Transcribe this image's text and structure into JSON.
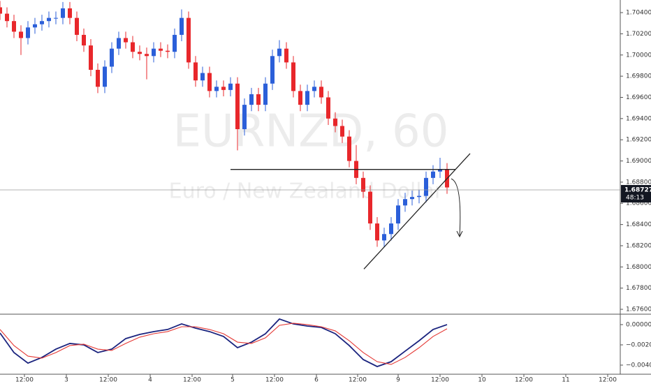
{
  "chart_data": [
    {
      "type": "candlestick",
      "watermark_title": "EURNZD, 60",
      "watermark_subtitle": "Euro / New Zealand Dollar",
      "up_color": "#2b5fd9",
      "down_color": "#e8272b",
      "xlim": [
        0,
        177.6
      ],
      "ylim": [
        1.67554,
        1.70519
      ],
      "yticks": [
        {
          "value": 1.704,
          "label": "1.70400"
        },
        {
          "value": 1.702,
          "label": "1.70200"
        },
        {
          "value": 1.7,
          "label": "1.70000"
        },
        {
          "value": 1.698,
          "label": "1.69800"
        },
        {
          "value": 1.696,
          "label": "1.69600"
        },
        {
          "value": 1.694,
          "label": "1.69400"
        },
        {
          "value": 1.692,
          "label": "1.69200"
        },
        {
          "value": 1.69,
          "label": "1.69000"
        },
        {
          "value": 1.688,
          "label": "1.68800"
        },
        {
          "value": 1.686,
          "label": "1.68600"
        },
        {
          "value": 1.684,
          "label": "1.68400"
        },
        {
          "value": 1.682,
          "label": "1.68200"
        },
        {
          "value": 1.68,
          "label": "1.68000"
        },
        {
          "value": 1.678,
          "label": "1.67800"
        },
        {
          "value": 1.676,
          "label": "1.67600"
        }
      ],
      "x": [
        0,
        2,
        4,
        6,
        8,
        10,
        12,
        14,
        16,
        18,
        20,
        22,
        24,
        26,
        28,
        30,
        32,
        34,
        36,
        38,
        40,
        42,
        44,
        46,
        48,
        50,
        52,
        54,
        56,
        58,
        60,
        62,
        64,
        66,
        68,
        70,
        72,
        74,
        76,
        78,
        80,
        82,
        84,
        86,
        88,
        90,
        92,
        94,
        96,
        98,
        100,
        102,
        104,
        106,
        108,
        110,
        112,
        114,
        116,
        118,
        120,
        122,
        124,
        126,
        128
      ],
      "open": [
        1.7045,
        1.7039,
        1.7032,
        1.7022,
        1.7016,
        1.7026,
        1.7029,
        1.7032,
        1.7035,
        1.7035,
        1.7044,
        1.7035,
        1.7019,
        1.7009,
        1.6986,
        1.697,
        1.6989,
        1.7006,
        1.7016,
        1.7012,
        1.7003,
        1.7001,
        1.6999,
        1.7006,
        1.7004,
        1.7003,
        1.7019,
        1.7035,
        1.6993,
        1.6976,
        1.6983,
        1.6966,
        1.697,
        1.6967,
        1.6973,
        1.693,
        1.6953,
        1.6963,
        1.6953,
        1.6973,
        1.6999,
        1.7006,
        1.6993,
        1.6966,
        1.6953,
        1.6966,
        1.697,
        1.696,
        1.694,
        1.6933,
        1.6923,
        1.69,
        1.6884,
        1.6871,
        1.6841,
        1.6825,
        1.6831,
        1.6841,
        1.6858,
        1.6864,
        1.6866,
        1.6867,
        1.6884,
        1.689,
        1.6892
      ],
      "high": [
        1.7051,
        1.7045,
        1.7038,
        1.7028,
        1.7032,
        1.7035,
        1.7038,
        1.7041,
        1.7041,
        1.705,
        1.705,
        1.7041,
        1.7025,
        1.7015,
        1.6992,
        1.6995,
        1.7012,
        1.7022,
        1.7022,
        1.7018,
        1.7009,
        1.7007,
        1.7012,
        1.7012,
        1.701,
        1.7025,
        1.7043,
        1.7041,
        1.6999,
        1.6989,
        1.6989,
        1.6976,
        1.6976,
        1.6979,
        1.6979,
        1.6959,
        1.6969,
        1.6969,
        1.6979,
        1.7005,
        1.7014,
        1.7012,
        1.6999,
        1.6972,
        1.6972,
        1.6976,
        1.6976,
        1.6966,
        1.6946,
        1.6939,
        1.6929,
        1.6915,
        1.689,
        1.6877,
        1.6847,
        1.6837,
        1.6847,
        1.6864,
        1.687,
        1.6872,
        1.6873,
        1.689,
        1.6896,
        1.6903,
        1.6898
      ],
      "low": [
        1.7033,
        1.7026,
        1.7016,
        1.7,
        1.701,
        1.702,
        1.7023,
        1.7026,
        1.7029,
        1.7029,
        1.7029,
        1.7013,
        1.7003,
        1.698,
        1.6964,
        1.6964,
        1.6983,
        1.7,
        1.7006,
        1.6997,
        1.6995,
        1.6977,
        1.6993,
        1.6998,
        1.6997,
        1.6997,
        1.7013,
        1.6987,
        1.697,
        1.697,
        1.696,
        1.696,
        1.6961,
        1.6961,
        1.691,
        1.6924,
        1.6947,
        1.6947,
        1.6947,
        1.6967,
        1.6993,
        1.6987,
        1.696,
        1.6947,
        1.6947,
        1.696,
        1.6954,
        1.6934,
        1.6927,
        1.6917,
        1.6894,
        1.6878,
        1.6865,
        1.6835,
        1.6819,
        1.6819,
        1.6825,
        1.6835,
        1.6852,
        1.6858,
        1.686,
        1.6861,
        1.6878,
        1.6884,
        1.6869
      ],
      "close": [
        1.7039,
        1.7032,
        1.7022,
        1.7016,
        1.7026,
        1.7029,
        1.7032,
        1.7035,
        1.7035,
        1.7044,
        1.7035,
        1.7019,
        1.7009,
        1.6986,
        1.697,
        1.6989,
        1.7006,
        1.7016,
        1.7012,
        1.7003,
        1.7001,
        1.6999,
        1.7006,
        1.7004,
        1.7003,
        1.7019,
        1.7035,
        1.6993,
        1.6976,
        1.6983,
        1.6966,
        1.697,
        1.6967,
        1.6973,
        1.693,
        1.6953,
        1.6963,
        1.6953,
        1.6973,
        1.6999,
        1.7006,
        1.6993,
        1.6966,
        1.6953,
        1.6966,
        1.697,
        1.696,
        1.694,
        1.6933,
        1.6923,
        1.69,
        1.6884,
        1.6871,
        1.6841,
        1.6825,
        1.6831,
        1.6841,
        1.6858,
        1.6864,
        1.6866,
        1.6867,
        1.6884,
        1.689,
        1.6892,
        1.6875
      ],
      "lines": [
        {
          "color": "#222222",
          "x": [
            66,
            130.4
          ],
          "y": [
            1.6892,
            1.6892
          ]
        },
        {
          "color": "#222222",
          "x": [
            104.2,
            134.6
          ],
          "y": [
            1.6798,
            1.6907
          ]
        }
      ],
      "last_price": {
        "value": 1.68727,
        "label": "1.68727"
      },
      "countdown": "48:13"
    },
    {
      "type": "line",
      "xlim": [
        0,
        177.6
      ],
      "ylim": [
        -0.00483,
        0.00103
      ],
      "yticks": [
        {
          "value": 0,
          "label": "0.00000"
        },
        {
          "value": -0.002,
          "label": "−0.00200"
        },
        {
          "value": -0.004,
          "label": "−0.00400"
        }
      ],
      "xticks": [
        {
          "value": 7,
          "label": "12:00"
        },
        {
          "value": 19,
          "label": "3"
        },
        {
          "value": 31,
          "label": "12:00"
        },
        {
          "value": 43,
          "label": "4"
        },
        {
          "value": 55,
          "label": "12:00"
        },
        {
          "value": 66.6,
          "label": "5"
        },
        {
          "value": 78.6,
          "label": "12:00"
        },
        {
          "value": 90.6,
          "label": "6"
        },
        {
          "value": 102.4,
          "label": "12:00"
        },
        {
          "value": 114,
          "label": "9"
        },
        {
          "value": 126,
          "label": "12:00"
        },
        {
          "value": 138,
          "label": "10"
        },
        {
          "value": 150,
          "label": "12:00"
        },
        {
          "value": 162,
          "label": "11"
        },
        {
          "value": 174,
          "label": "12:00"
        }
      ],
      "x": [
        0,
        4,
        8,
        12,
        16,
        20,
        24,
        28,
        32,
        36,
        40,
        44,
        48,
        52,
        56,
        60,
        64,
        68,
        72,
        76,
        80,
        84,
        88,
        92,
        96,
        100,
        104,
        108,
        112,
        116,
        120,
        124,
        128
      ],
      "series": [
        {
          "color": "#1a237e",
          "values": [
            -0.00083,
            -0.00276,
            -0.0038,
            -0.00324,
            -0.00242,
            -0.00186,
            -0.002,
            -0.00276,
            -0.00242,
            -0.00138,
            -0.00097,
            -0.00069,
            -0.00048,
            7e-05,
            -0.00035,
            -0.00069,
            -0.00117,
            -0.00228,
            -0.00173,
            -0.0009,
            0.00055,
            7e-05,
            -0.00014,
            -0.00028,
            -0.0009,
            -0.00207,
            -0.00345,
            -0.00414,
            -0.00366,
            -0.00262,
            -0.00159,
            -0.00048,
            0.0
          ]
        },
        {
          "color": "#e53935",
          "values": [
            -0.00048,
            -0.00207,
            -0.00311,
            -0.00331,
            -0.00276,
            -0.00207,
            -0.00193,
            -0.00242,
            -0.00255,
            -0.00186,
            -0.00124,
            -0.0009,
            -0.00069,
            -0.00021,
            -0.00021,
            -0.00048,
            -0.0009,
            -0.00173,
            -0.00186,
            -0.00131,
            -7e-05,
            0.00014,
            0.0,
            -0.00021,
            -0.00062,
            -0.00159,
            -0.00276,
            -0.00366,
            -0.00393,
            -0.00324,
            -0.00228,
            -0.00117,
            -0.00041
          ]
        }
      ]
    }
  ]
}
